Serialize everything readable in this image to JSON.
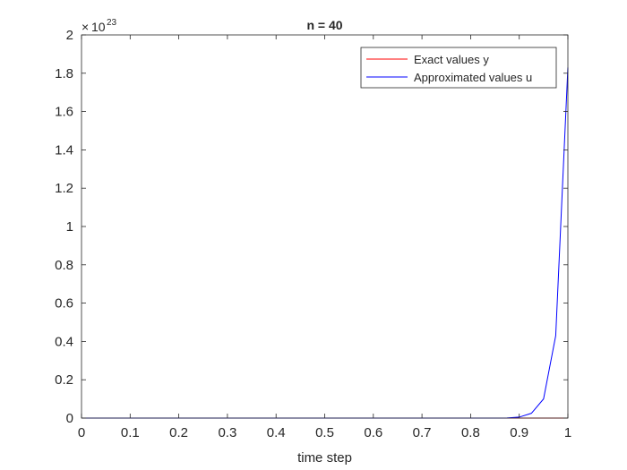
{
  "chart_data": {
    "type": "line",
    "title": "n = 40",
    "xlabel": "time step",
    "ylabel": "",
    "xlim": [
      0,
      1
    ],
    "ylim": [
      0,
      2
    ],
    "y_exponent_label": "10",
    "y_exponent_power": "23",
    "y_exponent_prefix": "×",
    "xticks": [
      0,
      0.1,
      0.2,
      0.3,
      0.4,
      0.5,
      0.6,
      0.7,
      0.8,
      0.9,
      1
    ],
    "xtick_labels": [
      "0",
      "0.1",
      "0.2",
      "0.3",
      "0.4",
      "0.5",
      "0.6",
      "0.7",
      "0.8",
      "0.9",
      "1"
    ],
    "yticks": [
      0,
      0.2,
      0.4,
      0.6,
      0.8,
      1,
      1.2,
      1.4,
      1.6,
      1.8,
      2
    ],
    "ytick_labels": [
      "0",
      "0.2",
      "0.4",
      "0.6",
      "0.8",
      "1",
      "1.2",
      "1.4",
      "1.6",
      "1.8",
      "2"
    ],
    "grid": false,
    "legend_position": "top-right",
    "series": [
      {
        "name": "Exact values y",
        "color": "#ff0000",
        "x": [
          0,
          0.1,
          0.2,
          0.3,
          0.4,
          0.5,
          0.6,
          0.7,
          0.8,
          0.85,
          0.875,
          0.9,
          0.925,
          0.95,
          0.975,
          1
        ],
        "y": [
          0,
          0,
          0,
          0,
          0,
          0,
          0,
          0,
          0,
          0,
          0,
          0,
          0,
          0,
          0,
          0
        ]
      },
      {
        "name": "Approximated values u",
        "color": "#0000ff",
        "x": [
          0,
          0.1,
          0.2,
          0.3,
          0.4,
          0.5,
          0.6,
          0.7,
          0.8,
          0.85,
          0.875,
          0.9,
          0.925,
          0.95,
          0.975,
          1
        ],
        "y": [
          0,
          0,
          0,
          0,
          0,
          0,
          0,
          0,
          0,
          0,
          0.0005,
          0.005,
          0.025,
          0.1,
          0.43,
          1.83
        ]
      }
    ]
  }
}
